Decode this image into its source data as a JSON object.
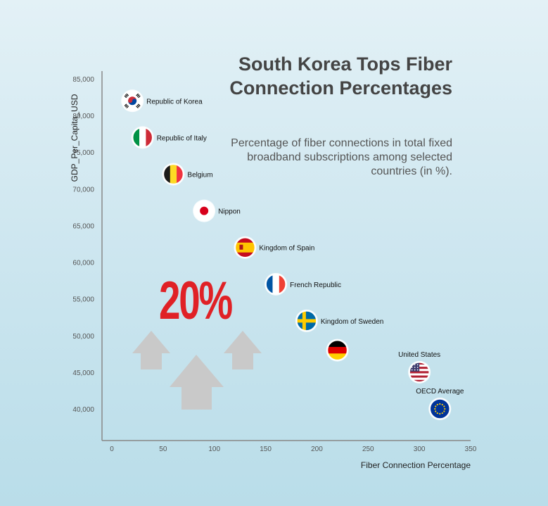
{
  "title": "South Korea Tops Fiber Connection Percentages",
  "subtitle": "Percentage of fiber connections in total fixed broadband subscriptions among selected countries (in %).",
  "highlight": "20%",
  "colors": {
    "highlight": "#e02126",
    "axis": "#888888",
    "arrows": "#c9c9c9"
  },
  "chart_data": {
    "type": "scatter",
    "xlabel": "Fiber Connection Percentage",
    "ylabel": "GDP_Per_Capita_USD",
    "xlim": [
      0,
      350
    ],
    "ylim": [
      37000,
      86000
    ],
    "x_ticks": [
      0,
      50,
      100,
      150,
      200,
      250,
      300,
      350
    ],
    "y_ticks": [
      40000,
      45000,
      50000,
      55000,
      60000,
      65000,
      70000,
      75000,
      80000,
      85000
    ],
    "y_tick_labels": [
      "40,000",
      "45,000",
      "50,000",
      "55,000",
      "60,000",
      "65,000",
      "70,000",
      "75,000",
      "80,000",
      "85,000"
    ],
    "grid": false,
    "points": [
      {
        "label": "Republic of Korea",
        "flag": "korea-flag-icon",
        "x": 20,
        "y": 82000,
        "label_pos": "right"
      },
      {
        "label": "Republic of Italy",
        "flag": "italy-flag-icon",
        "x": 30,
        "y": 77000,
        "label_pos": "right"
      },
      {
        "label": "Belgium",
        "flag": "belgium-flag-icon",
        "x": 60,
        "y": 72000,
        "label_pos": "right"
      },
      {
        "label": "Nippon",
        "flag": "japan-flag-icon",
        "x": 90,
        "y": 67000,
        "label_pos": "right"
      },
      {
        "label": "Kingdom of Spain",
        "flag": "spain-flag-icon",
        "x": 130,
        "y": 62000,
        "label_pos": "right"
      },
      {
        "label": "French Republic",
        "flag": "france-flag-icon",
        "x": 160,
        "y": 57000,
        "label_pos": "right"
      },
      {
        "label": "Kingdom of Sweden",
        "flag": "sweden-flag-icon",
        "x": 190,
        "y": 52000,
        "label_pos": "right"
      },
      {
        "label": "",
        "flag": "germany-flag-icon",
        "x": 220,
        "y": 48000,
        "label_pos": "right"
      },
      {
        "label": "United States",
        "flag": "usa-flag-icon",
        "x": 300,
        "y": 45000,
        "label_pos": "top"
      },
      {
        "label": "OECD Average",
        "flag": "eu-flag-icon",
        "x": 320,
        "y": 40000,
        "label_pos": "top"
      }
    ]
  }
}
